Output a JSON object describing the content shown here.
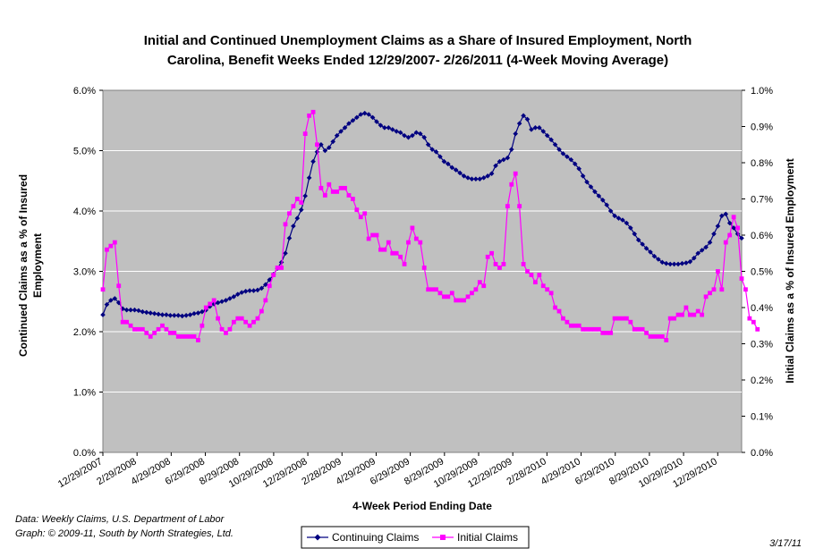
{
  "chart_data": {
    "type": "line",
    "title_line1": "Initial and Continued Unemployment Claims as a Share of Insured Employment, North",
    "title_line2": "Carolina, Benefit Weeks Ended 12/29/2007- 2/26/2011 (4-Week Moving Average)",
    "xlabel": "4-Week Period Ending Date",
    "ylabel_left_line1": "Continued Claims as a % of Insured",
    "ylabel_left_line2": "Employment",
    "ylabel_right": "Initial Claims as a % of Insured Employment",
    "ylim_left": [
      0,
      6
    ],
    "ylim_right": [
      0,
      1
    ],
    "yticks_left": [
      "0.0%",
      "1.0%",
      "2.0%",
      "3.0%",
      "4.0%",
      "5.0%",
      "6.0%"
    ],
    "yticks_right": [
      "0.0%",
      "0.1%",
      "0.2%",
      "0.3%",
      "0.4%",
      "0.5%",
      "0.6%",
      "0.7%",
      "0.8%",
      "0.9%",
      "1.0%"
    ],
    "xticks": [
      "12/29/2007",
      "2/29/2008",
      "4/29/2008",
      "6/29/2008",
      "8/29/2008",
      "10/29/2008",
      "12/29/2008",
      "2/28/2009",
      "4/29/2009",
      "6/29/2009",
      "8/29/2009",
      "10/29/2009",
      "12/29/2009",
      "2/28/2010",
      "4/29/2010",
      "6/29/2010",
      "8/29/2010",
      "10/29/2010",
      "12/29/2010"
    ],
    "grid": true,
    "plot_background": "#c0c0c0",
    "legend_position": "bottom",
    "series": [
      {
        "name": "Continuing Claims",
        "axis": "left",
        "color": "#000080",
        "marker": "diamond",
        "values": [
          2.28,
          2.45,
          2.52,
          2.55,
          2.48,
          2.38,
          2.36,
          2.36,
          2.36,
          2.35,
          2.33,
          2.32,
          2.31,
          2.3,
          2.29,
          2.28,
          2.28,
          2.27,
          2.27,
          2.27,
          2.26,
          2.27,
          2.28,
          2.3,
          2.31,
          2.33,
          2.36,
          2.42,
          2.46,
          2.48,
          2.5,
          2.52,
          2.55,
          2.58,
          2.62,
          2.65,
          2.67,
          2.68,
          2.68,
          2.69,
          2.72,
          2.78,
          2.86,
          2.95,
          3.05,
          3.15,
          3.3,
          3.55,
          3.75,
          3.88,
          4.02,
          4.25,
          4.55,
          4.82,
          4.98,
          5.1,
          5.0,
          5.05,
          5.15,
          5.25,
          5.32,
          5.38,
          5.45,
          5.5,
          5.55,
          5.6,
          5.62,
          5.6,
          5.55,
          5.48,
          5.42,
          5.38,
          5.38,
          5.35,
          5.32,
          5.3,
          5.25,
          5.22,
          5.25,
          5.3,
          5.28,
          5.22,
          5.1,
          5.02,
          4.98,
          4.9,
          4.82,
          4.78,
          4.72,
          4.68,
          4.63,
          4.58,
          4.55,
          4.53,
          4.53,
          4.53,
          4.55,
          4.58,
          4.62,
          4.75,
          4.82,
          4.85,
          4.88,
          5.02,
          5.28,
          5.45,
          5.58,
          5.52,
          5.35,
          5.38,
          5.38,
          5.32,
          5.25,
          5.18,
          5.1,
          5.02,
          4.95,
          4.9,
          4.85,
          4.78,
          4.7,
          4.58,
          4.48,
          4.4,
          4.32,
          4.25,
          4.18,
          4.1,
          4.0,
          3.92,
          3.88,
          3.85,
          3.8,
          3.72,
          3.62,
          3.52,
          3.45,
          3.38,
          3.32,
          3.25,
          3.2,
          3.15,
          3.13,
          3.12,
          3.12,
          3.12,
          3.13,
          3.14,
          3.16,
          3.22,
          3.3,
          3.35,
          3.4,
          3.48,
          3.62,
          3.75,
          3.92,
          3.95,
          3.8,
          3.72,
          3.62,
          3.55
        ]
      },
      {
        "name": "Initial Claims",
        "axis": "right",
        "color": "#ff00ff",
        "marker": "square",
        "values": [
          0.45,
          0.56,
          0.57,
          0.58,
          0.46,
          0.36,
          0.36,
          0.35,
          0.34,
          0.34,
          0.34,
          0.33,
          0.32,
          0.33,
          0.34,
          0.35,
          0.34,
          0.33,
          0.33,
          0.32,
          0.32,
          0.32,
          0.32,
          0.32,
          0.31,
          0.35,
          0.4,
          0.41,
          0.42,
          0.37,
          0.34,
          0.33,
          0.34,
          0.36,
          0.37,
          0.37,
          0.36,
          0.35,
          0.36,
          0.37,
          0.39,
          0.42,
          0.46,
          0.49,
          0.51,
          0.51,
          0.63,
          0.66,
          0.68,
          0.7,
          0.69,
          0.88,
          0.93,
          0.94,
          0.85,
          0.73,
          0.71,
          0.74,
          0.72,
          0.72,
          0.73,
          0.73,
          0.71,
          0.7,
          0.67,
          0.65,
          0.66,
          0.59,
          0.6,
          0.6,
          0.56,
          0.56,
          0.58,
          0.55,
          0.55,
          0.54,
          0.52,
          0.58,
          0.62,
          0.59,
          0.58,
          0.51,
          0.45,
          0.45,
          0.45,
          0.44,
          0.43,
          0.43,
          0.44,
          0.42,
          0.42,
          0.42,
          0.43,
          0.44,
          0.45,
          0.47,
          0.46,
          0.54,
          0.55,
          0.52,
          0.51,
          0.52,
          0.68,
          0.74,
          0.77,
          0.68,
          0.52,
          0.5,
          0.49,
          0.47,
          0.49,
          0.46,
          0.45,
          0.44,
          0.4,
          0.39,
          0.37,
          0.36,
          0.35,
          0.35,
          0.35,
          0.34,
          0.34,
          0.34,
          0.34,
          0.34,
          0.33,
          0.33,
          0.33,
          0.37,
          0.37,
          0.37,
          0.37,
          0.36,
          0.34,
          0.34,
          0.34,
          0.33,
          0.32,
          0.32,
          0.32,
          0.32,
          0.31,
          0.37,
          0.37,
          0.38,
          0.38,
          0.4,
          0.38,
          0.38,
          0.39,
          0.38,
          0.43,
          0.44,
          0.45,
          0.5,
          0.45,
          0.58,
          0.6,
          0.65,
          0.62,
          0.48,
          0.45,
          0.37,
          0.36,
          0.34
        ]
      }
    ],
    "notes": {
      "data_source": "Data:  Weekly Claims, U.S. Department of Labor",
      "graph_credit": "Graph: © 2009-11, South by North Strategies, Ltd.",
      "date": "3/17/11"
    }
  }
}
